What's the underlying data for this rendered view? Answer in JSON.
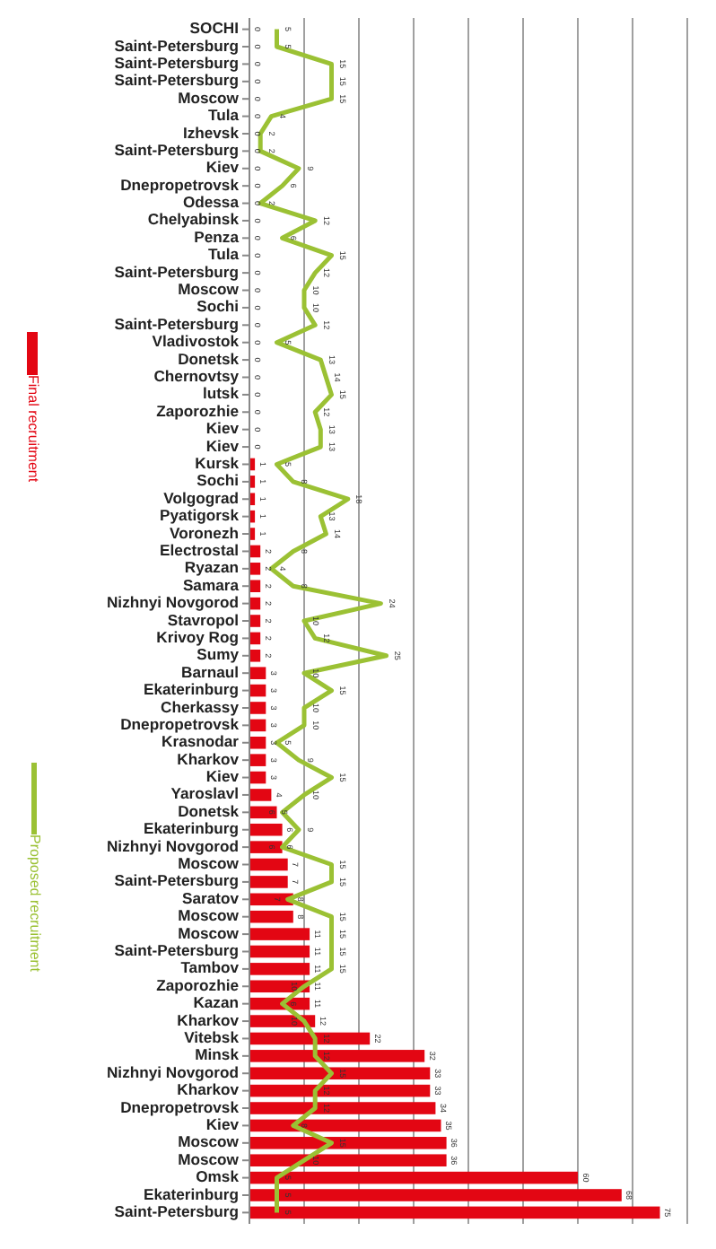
{
  "chart_data": {
    "type": "bar",
    "orientation": "horizontal",
    "categories": [
      "SOCHI",
      "Saint-Petersburg",
      "Saint-Petersburg",
      "Saint-Petersburg",
      "Moscow",
      "Tula",
      "Izhevsk",
      "Saint-Petersburg",
      "Kiev",
      "Dnepropetrovsk",
      "Odessa",
      "Chelyabinsk",
      "Penza",
      "Tula",
      "Saint-Petersburg",
      "Moscow",
      "Sochi",
      "Saint-Petersburg",
      "Vladivostok",
      "Donetsk",
      "Chernovtsy",
      "lutsk",
      "Zaporozhie",
      "Kiev",
      "Kiev",
      "Kursk",
      "Sochi",
      "Volgograd",
      "Pyatigorsk",
      "Voronezh",
      "Electrostal",
      "Ryazan",
      "Samara",
      "Nizhnyi Novgorod",
      "Stavropol",
      "Krivoy Rog",
      "Sumy",
      "Barnaul",
      "Ekaterinburg",
      "Cherkassy",
      "Dnepropetrovsk",
      "Krasnodar",
      "Kharkov",
      "Kiev",
      "Yaroslavl",
      "Donetsk",
      "Ekaterinburg",
      "Nizhnyi Novgorod",
      "Moscow",
      "Saint-Petersburg",
      "Saratov",
      "Moscow",
      "Moscow",
      "Saint-Petersburg",
      "Tambov",
      "Zaporozhie",
      "Kazan",
      "Kharkov",
      "Vitebsk",
      "Minsk",
      "Nizhnyi Novgorod",
      "Kharkov",
      "Dnepropetrovsk",
      "Kiev",
      "Moscow",
      "Moscow",
      "Omsk",
      "Ekaterinburg",
      "Saint-Petersburg"
    ],
    "series": [
      {
        "name": "Final recruitment",
        "type": "bar",
        "color": "#e30613",
        "values": [
          0,
          0,
          0,
          0,
          0,
          0,
          0,
          0,
          0,
          0,
          0,
          0,
          0,
          0,
          0,
          0,
          0,
          0,
          0,
          0,
          0,
          0,
          0,
          0,
          0,
          1,
          1,
          1,
          1,
          1,
          2,
          2,
          2,
          2,
          2,
          2,
          2,
          3,
          3,
          3,
          3,
          3,
          3,
          3,
          4,
          5,
          6,
          6,
          7,
          7,
          8,
          8,
          11,
          11,
          11,
          11,
          11,
          12,
          22,
          32,
          33,
          33,
          34,
          35,
          36,
          36,
          60,
          68,
          75
        ]
      },
      {
        "name": "Proposed recruitment",
        "type": "line",
        "color": "#9bc134",
        "values": [
          5,
          5,
          15,
          15,
          15,
          4,
          2,
          2,
          9,
          6,
          2,
          12,
          6,
          15,
          12,
          10,
          10,
          12,
          5,
          13,
          14,
          15,
          12,
          13,
          13,
          5,
          8,
          18,
          13,
          14,
          8,
          4,
          8,
          24,
          10,
          12,
          25,
          10,
          15,
          10,
          10,
          5,
          9,
          15,
          10,
          6,
          9,
          6,
          15,
          15,
          7,
          15,
          15,
          15,
          15,
          10,
          6,
          10,
          12,
          12,
          15,
          12,
          12,
          8,
          15,
          10,
          5,
          5,
          5
        ]
      }
    ],
    "xlim": [
      0,
      80
    ],
    "xticks": [
      {
        "value": 0,
        "label": null
      },
      {
        "value": 10,
        "label": null
      },
      {
        "value": 20,
        "label": null
      },
      {
        "value": 30,
        "label": null
      },
      {
        "value": 40,
        "label": null
      },
      {
        "value": 50,
        "label": null
      },
      {
        "value": 60,
        "label": null
      },
      {
        "value": 70,
        "label": null
      },
      {
        "value": 80,
        "label": null
      }
    ],
    "tick_labels": "y",
    "grid": "x",
    "legend": "left",
    "data_labels": true,
    "marker": "none",
    "line_style": "solid"
  }
}
